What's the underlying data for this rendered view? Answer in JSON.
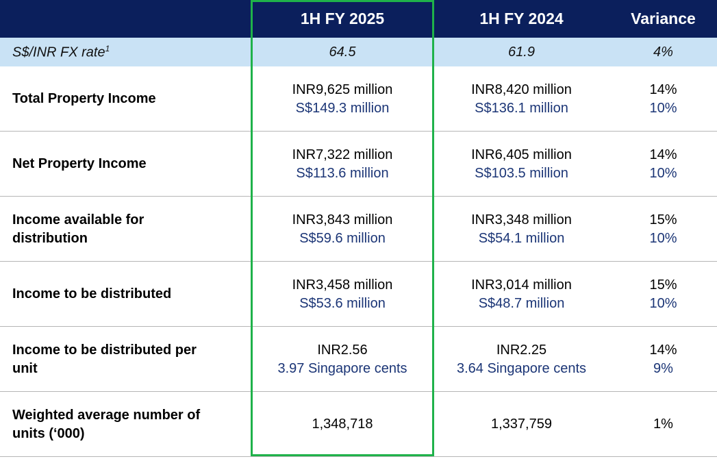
{
  "table": {
    "header": [
      "1H FY 2025",
      "1H FY 2024",
      "Variance"
    ],
    "fx_row": {
      "label": "S$/INR FX rate",
      "footnote": "1",
      "values": [
        "64.5",
        "61.9",
        "4%"
      ]
    },
    "rows": [
      {
        "label": [
          "Total Property Income"
        ],
        "cells": [
          [
            "INR9,625 million",
            "S$149.3 million"
          ],
          [
            "INR8,420 million",
            "S$136.1 million"
          ],
          [
            "14%",
            "10%"
          ]
        ]
      },
      {
        "label": [
          "Net Property Income"
        ],
        "cells": [
          [
            "INR7,322 million",
            "S$113.6 million"
          ],
          [
            "INR6,405 million",
            "S$103.5 million"
          ],
          [
            "14%",
            "10%"
          ]
        ]
      },
      {
        "label": [
          "Income available for",
          "distribution"
        ],
        "cells": [
          [
            "INR3,843 million",
            "S$59.6 million"
          ],
          [
            "INR3,348 million",
            "S$54.1 million"
          ],
          [
            "15%",
            "10%"
          ]
        ]
      },
      {
        "label": [
          "Income to be distributed"
        ],
        "cells": [
          [
            "INR3,458 million",
            "S$53.6 million"
          ],
          [
            "INR3,014 million",
            "S$48.7 million"
          ],
          [
            "15%",
            "10%"
          ]
        ]
      },
      {
        "label": [
          "Income to be distributed per",
          "unit"
        ],
        "cells": [
          [
            "INR2.56",
            "3.97 Singapore cents"
          ],
          [
            "INR2.25",
            "3.64 Singapore cents"
          ],
          [
            "14%",
            "9%"
          ]
        ]
      },
      {
        "label": [
          "Weighted average number of",
          "units (‘000)"
        ],
        "cells": [
          [
            "1,348,718"
          ],
          [
            "1,337,759"
          ],
          [
            "1%"
          ]
        ]
      }
    ]
  }
}
